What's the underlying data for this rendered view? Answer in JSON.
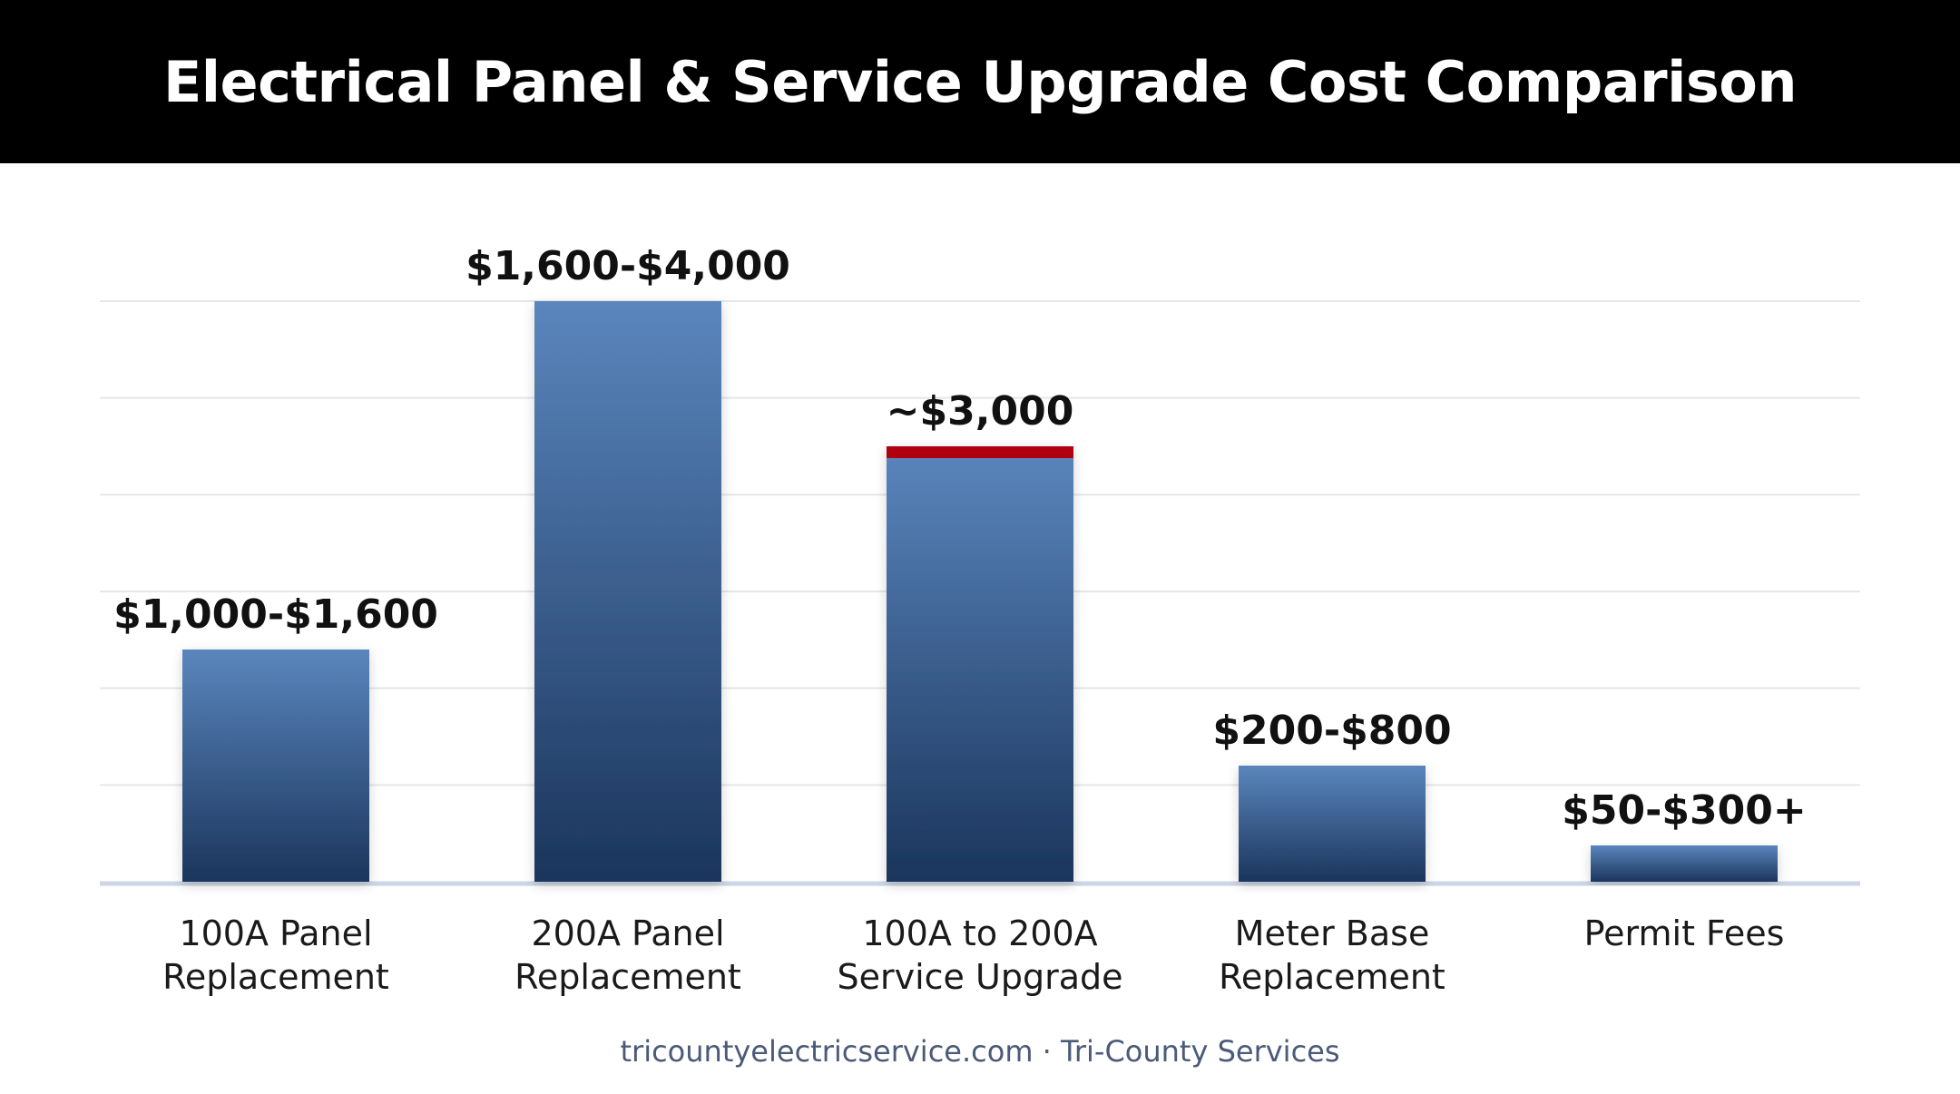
{
  "title": "Electrical Panel & Service Upgrade Cost Comparison",
  "footer": "tricountyelectricservice.com · Tri-County Services",
  "colors": {
    "bar_top": "#5a86bd",
    "bar_bottom": "#1b355c",
    "highlight": "#b00010",
    "grid": "#e6e6e6",
    "baseline": "#cdd6e4",
    "title_bg": "#000000"
  },
  "chart_data": {
    "type": "bar",
    "title": "Electrical Panel & Service Upgrade Cost Comparison",
    "xlabel": "",
    "ylabel": "",
    "ylim": [
      0,
      4000
    ],
    "grid": true,
    "legend": "none",
    "categories": [
      [
        "100A Panel",
        "Replacement"
      ],
      [
        "200A Panel",
        "Replacement"
      ],
      [
        "100A to 200A",
        "Service Upgrade"
      ],
      [
        "Meter Base",
        "Replacement"
      ],
      [
        "Permit Fees"
      ]
    ],
    "values": [
      1600,
      4000,
      3000,
      800,
      250
    ],
    "data_labels": [
      "$1,000-$1,600",
      "$1,600-$4,000",
      "~$3,000",
      "$200-$800",
      "$50-$300+"
    ],
    "highlighted": [
      false,
      false,
      true,
      false,
      false
    ]
  }
}
